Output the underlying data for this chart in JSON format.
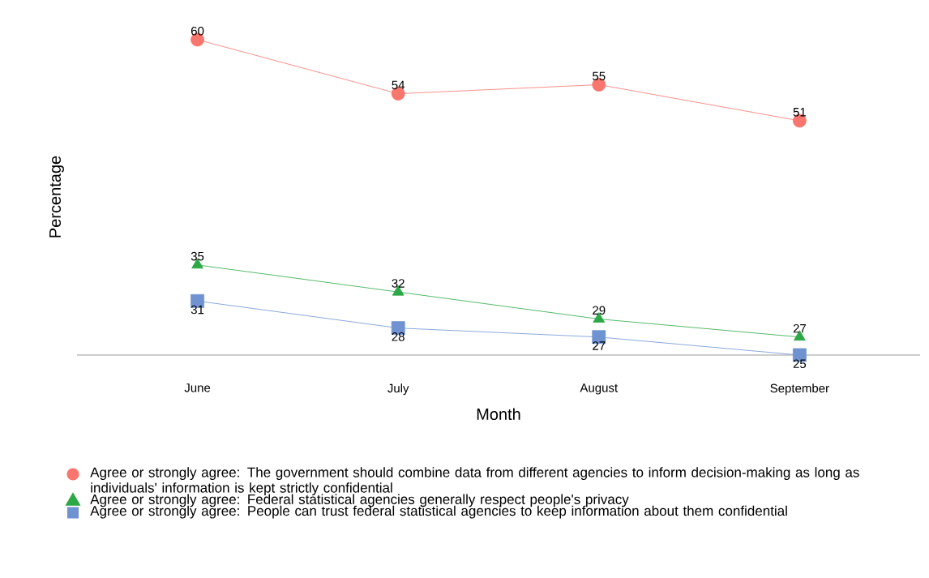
{
  "chart_data": {
    "type": "line",
    "xlabel": "Month",
    "ylabel": "Percentage",
    "categories": [
      "June",
      "July",
      "August",
      "September"
    ],
    "tick_labels": "x",
    "data_labels": true,
    "legend": "bottom",
    "series": [
      {
        "name": "Agree or strongly agree: The government should combine data from different agencies to inform decision-making as long as individuals' information is kept strictly confidential",
        "color": "#f8766d",
        "marker": "circle",
        "values": [
          60,
          54,
          55,
          51
        ]
      },
      {
        "name": "Agree or strongly agree: Federal statistical agencies generally respect people's privacy",
        "color": "#2ca846",
        "marker": "triangle",
        "values": [
          35,
          32,
          29,
          27
        ]
      },
      {
        "name": "Agree or strongly agree: People can trust federal statistical agencies to keep information about them confidential",
        "color": "#6f93d1",
        "marker": "square",
        "values": [
          31,
          28,
          27,
          25
        ]
      }
    ]
  }
}
